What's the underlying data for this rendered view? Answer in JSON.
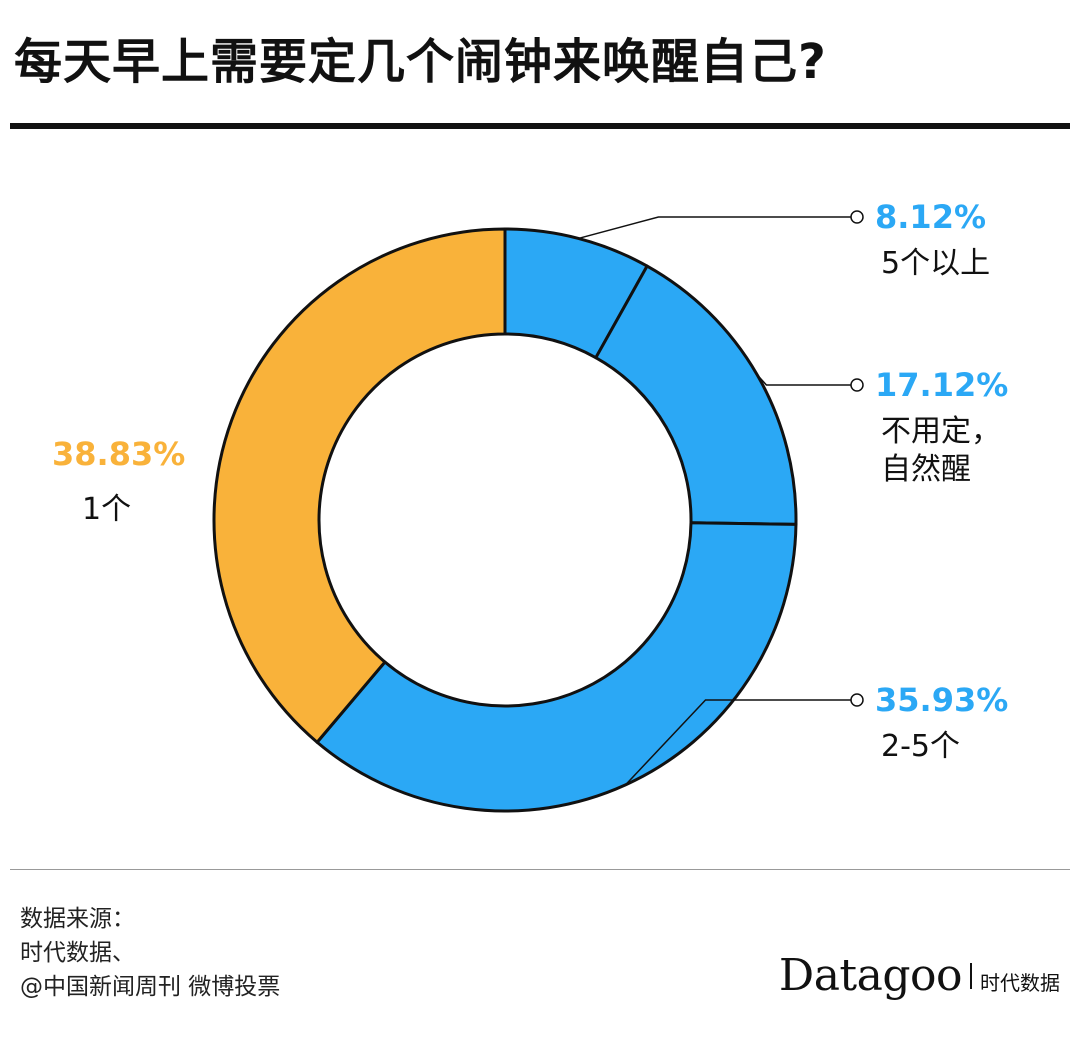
{
  "title": "每天早上需要定几个闹钟来唤醒自己?",
  "chart_data": {
    "type": "pie",
    "style": "donut",
    "slices": [
      {
        "category": "5个以上",
        "category_lines": [
          "5个以上"
        ],
        "value": 8.12,
        "label": "8.12%",
        "color": "#2ba8f5",
        "label_color": "#2ba8f5",
        "side": "right"
      },
      {
        "category": "不用定，自然醒",
        "category_lines": [
          "不用定，",
          "自然醒"
        ],
        "value": 17.12,
        "label": "17.12%",
        "color": "#2ba8f5",
        "label_color": "#2ba8f5",
        "side": "right"
      },
      {
        "category": "2-5个",
        "category_lines": [
          "2-5个"
        ],
        "value": 35.93,
        "label": "35.93%",
        "color": "#2ba8f5",
        "label_color": "#2ba8f5",
        "side": "right"
      },
      {
        "category": "1个",
        "category_lines": [
          "1个"
        ],
        "value": 38.83,
        "label": "38.83%",
        "color": "#f9b23a",
        "label_color": "#f9b23a",
        "side": "left"
      }
    ],
    "start_angle": "12 o'clock",
    "direction": "clockwise"
  },
  "source": {
    "lines": [
      "数据来源：",
      "时代数据、",
      "@中国新闻周刊 微博投票"
    ]
  },
  "brand": {
    "name": "Datagoo",
    "sub": "时代数据"
  }
}
